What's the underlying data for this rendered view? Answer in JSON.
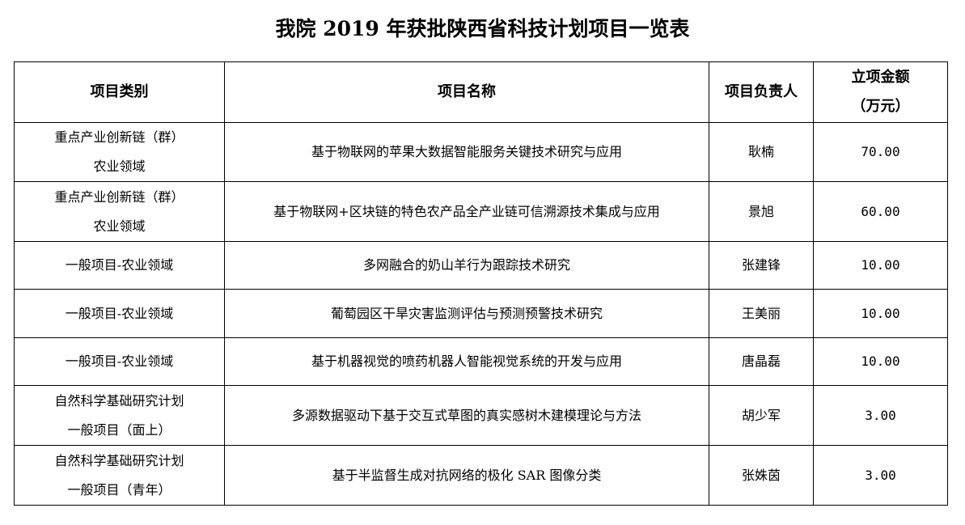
{
  "title": "我院 2019 年获批陕西省科技计划项目一览表",
  "headers": {
    "category": "项目类别",
    "name": "项目名称",
    "leader": "项目负责人",
    "amount_line1": "立项金额",
    "amount_line2": "（万元）"
  },
  "rows": [
    {
      "category": [
        "重点产业创新链（群）",
        "农业领域"
      ],
      "name": "基于物联网的苹果大数据智能服务关键技术研究与应用",
      "leader": "耿楠",
      "amount": "70.00"
    },
    {
      "category": [
        "重点产业创新链（群）",
        "农业领域"
      ],
      "name": "基于物联网+区块链的特色农产品全产业链可信溯源技术集成与应用",
      "leader": "景旭",
      "amount": "60.00"
    },
    {
      "category": [
        "一般项目-农业领域"
      ],
      "name": "多网融合的奶山羊行为跟踪技术研究",
      "leader": "张建锋",
      "amount": "10.00"
    },
    {
      "category": [
        "一般项目-农业领域"
      ],
      "name": "葡萄园区干旱灾害监测评估与预测预警技术研究",
      "leader": "王美丽",
      "amount": "10.00"
    },
    {
      "category": [
        "一般项目-农业领域"
      ],
      "name": "基于机器视觉的喷药机器人智能视觉系统的开发与应用",
      "leader": "唐晶磊",
      "amount": "10.00"
    },
    {
      "category": [
        "自然科学基础研究计划",
        "一般项目（面上）"
      ],
      "name": "多源数据驱动下基于交互式草图的真实感树木建模理论与方法",
      "leader": "胡少军",
      "amount": "3.00"
    },
    {
      "category": [
        "自然科学基础研究计划",
        "一般项目（青年）"
      ],
      "name": "基于半监督生成对抗网络的极化 SAR 图像分类",
      "leader": "张姝茵",
      "amount": "3.00"
    }
  ]
}
